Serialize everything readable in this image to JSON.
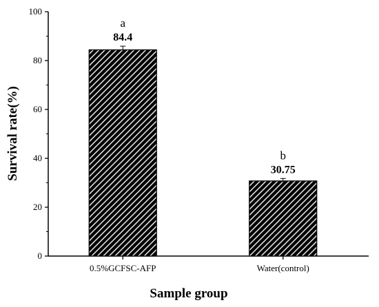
{
  "chart_data": {
    "type": "bar",
    "categories": [
      "0.5%GCFSC-AFP",
      "Water(control)"
    ],
    "values": [
      84.4,
      30.75
    ],
    "errors": [
      1.5,
      1.0
    ],
    "value_labels": [
      "84.4",
      "30.75"
    ],
    "significance_letters": [
      "a",
      "b"
    ],
    "title": "",
    "xlabel": "Sample group",
    "ylabel": "Survival rate(%)",
    "ylim": [
      0,
      100
    ],
    "yticks": [
      "0",
      "20",
      "40",
      "60",
      "80",
      "100"
    ],
    "grid": false,
    "legend": "none",
    "bar_pattern": "diagonal-hatch",
    "colors": {
      "bar_fill": "#000000",
      "hatch": "#ffffff",
      "axis": "#000000"
    }
  }
}
